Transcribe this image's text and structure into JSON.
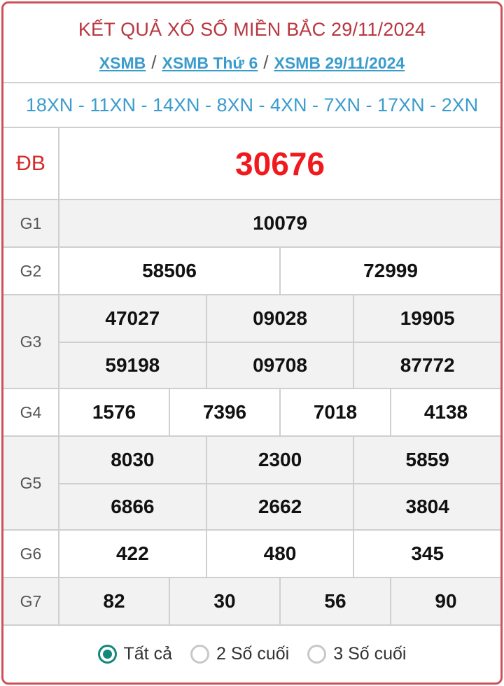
{
  "header": {
    "title": "KẾT QUẢ XỔ SỐ MIỀN BẮC 29/11/2024",
    "breadcrumb": [
      "XSMB",
      "XSMB Thứ 6",
      "XSMB 29/11/2024"
    ],
    "separator": "/"
  },
  "codes": "18XN - 11XN - 14XN - 8XN - 4XN - 7XN - 17XN - 2XN",
  "prizes": {
    "db": {
      "label": "ĐB",
      "numbers": [
        "30676"
      ]
    },
    "g1": {
      "label": "G1",
      "numbers": [
        "10079"
      ]
    },
    "g2": {
      "label": "G2",
      "numbers": [
        "58506",
        "72999"
      ]
    },
    "g3": {
      "label": "G3",
      "numbers": [
        "47027",
        "09028",
        "19905",
        "59198",
        "09708",
        "87772"
      ]
    },
    "g4": {
      "label": "G4",
      "numbers": [
        "1576",
        "7396",
        "7018",
        "4138"
      ]
    },
    "g5": {
      "label": "G5",
      "numbers": [
        "8030",
        "2300",
        "5859",
        "6866",
        "2662",
        "3804"
      ]
    },
    "g6": {
      "label": "G6",
      "numbers": [
        "422",
        "480",
        "345"
      ]
    },
    "g7": {
      "label": "G7",
      "numbers": [
        "82",
        "30",
        "56",
        "90"
      ]
    }
  },
  "filter": {
    "options": [
      "Tất cả",
      "2 Số cuối",
      "3 Số cuối"
    ],
    "selected": 0
  },
  "colors": {
    "accent": "#d0505a",
    "link": "#3a9ccd",
    "special": "#f0191d",
    "radio": "#14877c"
  }
}
